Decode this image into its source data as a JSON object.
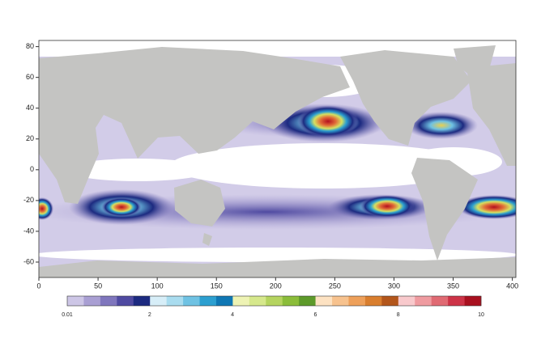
{
  "chart_data": {
    "type": "heatmap-map",
    "xlim": [
      0,
      403
    ],
    "ylim": [
      -70,
      84
    ],
    "xticks": [
      0,
      50,
      100,
      150,
      200,
      250,
      300,
      350,
      400
    ],
    "yticks": [
      -60,
      -40,
      -20,
      0,
      20,
      40,
      60,
      80
    ],
    "land_color": "#c4c4c2",
    "colorbar": {
      "ticks": [
        0.01,
        2,
        4,
        6,
        8,
        10
      ],
      "colors": [
        "#cdc6e6",
        "#a99fd3",
        "#7f76bd",
        "#4f4aa1",
        "#1c2a80",
        "#d7eef8",
        "#a9dcef",
        "#6fc2e3",
        "#2c9fd0",
        "#0f77b4",
        "#eef3b4",
        "#d6e88c",
        "#b5d45f",
        "#8bbd3a",
        "#5d9a2a",
        "#fde2c2",
        "#f7c28e",
        "#eea05a",
        "#d97e2e",
        "#b3561b",
        "#f8c9cc",
        "#ef9ba0",
        "#e06a73",
        "#cd3347",
        "#a8101f"
      ]
    }
  }
}
